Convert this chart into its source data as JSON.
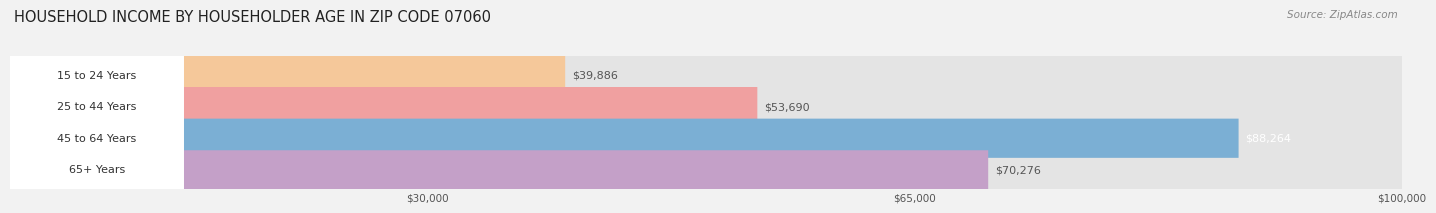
{
  "title": "HOUSEHOLD INCOME BY HOUSEHOLDER AGE IN ZIP CODE 07060",
  "source": "Source: ZipAtlas.com",
  "categories": [
    "15 to 24 Years",
    "25 to 44 Years",
    "45 to 64 Years",
    "65+ Years"
  ],
  "values": [
    39886,
    53690,
    88264,
    70276
  ],
  "bar_colors": [
    "#f5c89a",
    "#f0a0a0",
    "#7bafd4",
    "#c4a0c8"
  ],
  "bar_labels": [
    "$39,886",
    "$53,690",
    "$88,264",
    "$70,276"
  ],
  "label_colors": [
    "#555555",
    "#555555",
    "#ffffff",
    "#555555"
  ],
  "xmin": 0,
  "xmax": 100000,
  "xticks": [
    30000,
    65000,
    100000
  ],
  "xtick_labels": [
    "$30,000",
    "$65,000",
    "$100,000"
  ],
  "bg_color": "#f2f2f2",
  "bar_bg_color": "#e4e4e4",
  "label_bg_color": "#ffffff",
  "title_fontsize": 10.5,
  "source_fontsize": 7.5,
  "bar_height": 0.62,
  "bar_gap": 0.38
}
